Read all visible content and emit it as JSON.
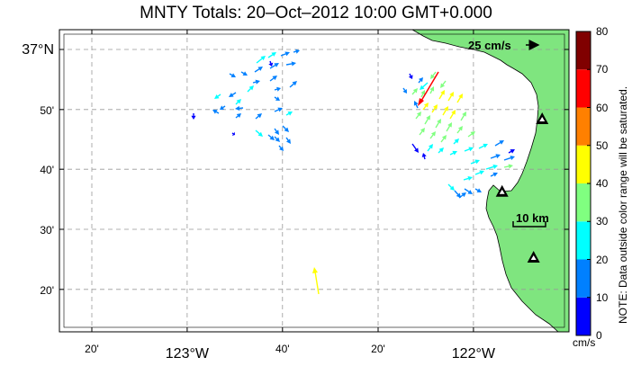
{
  "title": "MNTY Totals: 20–Oct–2012 10:00 GMT+0.000",
  "lat_labels": [
    {
      "deg": 37,
      "text": "37°N",
      "major": true
    },
    {
      "deg": 36.833,
      "text": "50'",
      "major": false
    },
    {
      "deg": 36.667,
      "text": "40'",
      "major": false
    },
    {
      "deg": 36.5,
      "text": "30'",
      "major": false
    },
    {
      "deg": 36.333,
      "text": "20'",
      "major": false
    }
  ],
  "lon_labels": [
    {
      "deg": -123.333,
      "text": "20'",
      "major": false
    },
    {
      "deg": -123.0,
      "text": "123°W",
      "major": true
    },
    {
      "deg": -122.667,
      "text": "40'",
      "major": false
    },
    {
      "deg": -122.333,
      "text": "20'",
      "major": false
    },
    {
      "deg": -122.0,
      "text": "122°W",
      "major": true
    }
  ],
  "reference_arrow": {
    "label": "25 cm/s",
    "speed_cms": 25
  },
  "scale_bar": {
    "label": "10 km",
    "length_km": 10
  },
  "colorbar": {
    "units": "cm/s",
    "note": "NOTE: Data outside color range will be saturated.",
    "ticks": [
      "0",
      "10",
      "20",
      "30",
      "40",
      "50",
      "60",
      "70",
      "80"
    ],
    "range": [
      0,
      80
    ],
    "colors": [
      "#0000ff",
      "#0080ff",
      "#00ffff",
      "#80ff80",
      "#ffff00",
      "#ff8000",
      "#ff0000",
      "#800000"
    ]
  },
  "land_color": "#7fe57f",
  "stations": [
    {
      "lon": -121.79,
      "lat": 36.42
    },
    {
      "lon": -121.9,
      "lat": 36.603
    },
    {
      "lon": -121.76,
      "lat": 36.805
    }
  ]
}
